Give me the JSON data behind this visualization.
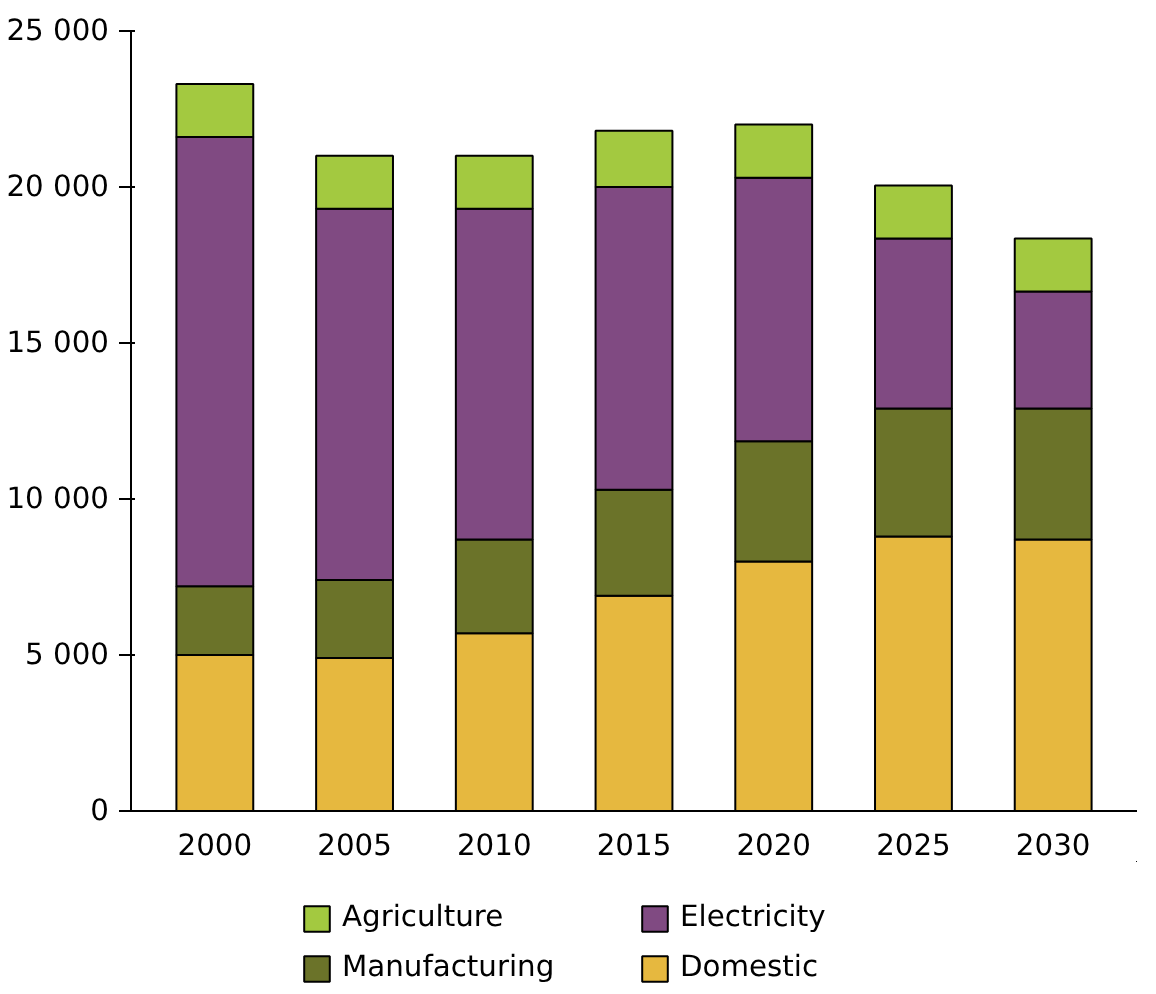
{
  "chart_data": {
    "type": "bar",
    "stacked": true,
    "categories": [
      "2000",
      "2005",
      "2010",
      "2015",
      "2020",
      "2025",
      "2030"
    ],
    "series": [
      {
        "name": "Domestic",
        "color": "#e6b83f",
        "values": [
          5000,
          4900,
          5700,
          6900,
          8000,
          8800,
          8700
        ]
      },
      {
        "name": "Manufacturing",
        "color": "#6b7329",
        "values": [
          2200,
          2500,
          3000,
          3400,
          3850,
          4100,
          4200
        ]
      },
      {
        "name": "Electricity",
        "color": "#804a82",
        "values": [
          14400,
          11900,
          10600,
          9700,
          8450,
          5450,
          3750
        ]
      },
      {
        "name": "Agriculture",
        "color": "#a3c940",
        "values": [
          1700,
          1700,
          1700,
          1800,
          1700,
          1700,
          1700
        ]
      }
    ],
    "ylim": [
      0,
      25000
    ],
    "yticks": [
      0,
      {
        "value": 5000,
        "label": "5 000"
      },
      {
        "value": 10000,
        "label": "10 000"
      },
      {
        "value": 15000,
        "label": "15 000"
      },
      {
        "value": 20000,
        "label": "20 000"
      },
      {
        "value": 25000,
        "label": "25 000"
      }
    ],
    "grid": false,
    "legend": "bottom"
  }
}
